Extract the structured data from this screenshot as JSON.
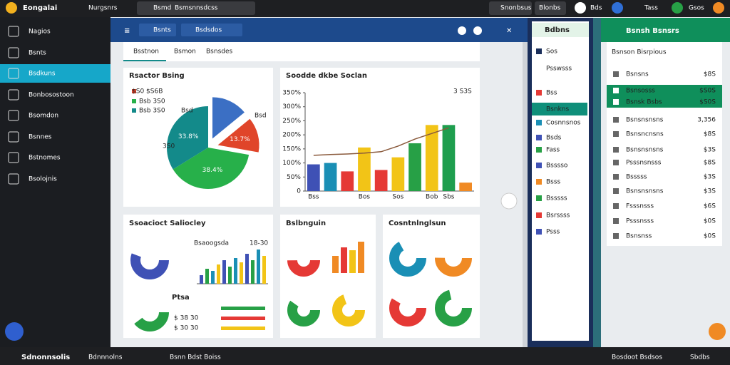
{
  "top_bar": {
    "app_name": "Eongalai",
    "menu": "Nurgsnrs",
    "search_label": "Bsmd",
    "search_text": "Bsmsnnsdcss",
    "account": "Snonbsus",
    "button": "Blonbs",
    "user": "Bds",
    "status": "Tass",
    "user2": "Gsos"
  },
  "sidebar": [
    "Nagios",
    "Bsnts",
    "Bsdkuns",
    "Bonbosostoon",
    "Bsomdon",
    "Bsnnes",
    "Bstnomes",
    "Bsolojnis"
  ],
  "header": {
    "select1": "Bsnts",
    "select2": "Bsdsdos"
  },
  "tabs": [
    "Bsstnon",
    "Bsmon",
    "Bsnsdes"
  ],
  "pie_card": {
    "type": "pie",
    "title": "Rsactor Bsing",
    "legend": [
      "$S0 $S6B",
      "Bsb 3S0",
      "Bsb 3S0"
    ],
    "side_labels": [
      "Bsd",
      "3S0",
      "Bsd"
    ],
    "values": [
      14.1,
      13.7,
      38.4,
      33.8
    ],
    "value_labels": [
      null,
      "13.7%",
      "38.4%",
      "33.8%"
    ],
    "colors": [
      "#3b6fc4",
      "#e0452a",
      "#27b04a",
      "#138a8a"
    ]
  },
  "bar_card": {
    "type": "bar",
    "title": "Soodde dkbe Soclan",
    "legend": "3 S3S",
    "categories": [
      "Bss",
      null,
      null,
      "Bos",
      null,
      "Sos",
      null,
      "Bob",
      "Sbs",
      null
    ],
    "values": [
      95,
      100,
      70,
      155,
      75,
      120,
      170,
      235,
      235,
      30
    ],
    "colors": [
      "#3f51b5",
      "#1a8fb5",
      "#e53935",
      "#f2c417",
      "#e53935",
      "#f2c417",
      "#27a046",
      "#f2c417",
      "#1e9e4e",
      "#f08a24"
    ],
    "ylim": [
      0,
      350
    ],
    "yticks": [
      0,
      {
        "value": 50,
        "label": "50%"
      },
      {
        "value": 100,
        "label": "100%"
      },
      {
        "value": 150,
        "label": "150%"
      },
      {
        "value": 200,
        "label": "200%"
      },
      {
        "value": 250,
        "label": "250%"
      },
      {
        "value": 300,
        "label": "300%"
      },
      {
        "value": 350,
        "label": "350%"
      }
    ],
    "trend": {
      "color": "#8a5a3c",
      "values": [
        127,
        130,
        132,
        135,
        140,
        160,
        185,
        205,
        225,
        null
      ]
    }
  },
  "card3": {
    "title": "Ssoacioct Saliocley",
    "chart_title": "Bsaoogsda",
    "chart_range": "18-30",
    "bars": [
      20,
      35,
      30,
      45,
      55,
      40,
      60,
      50,
      70,
      55,
      80,
      65
    ],
    "legend_title": "Ptsa",
    "legend": [
      "$ 38 30",
      "$ 30 30"
    ]
  },
  "card4": {
    "title": "Bslbnguin",
    "bars": [
      30,
      45,
      40,
      55
    ]
  },
  "card5": {
    "title": "Cosntnlnglsun"
  },
  "right_list": {
    "header": "Bdbns",
    "items": [
      "Sos",
      "Psswsss",
      "Bss",
      "Bsnkns",
      "Cosnnsnos",
      "Bsds",
      "Fass",
      "Bsssso",
      "Bsss",
      "Bsssss",
      "Bsrssss",
      "Psss"
    ]
  },
  "detail_panel": {
    "header": "Bsnsh Bsnsrs",
    "subtitle": "Bsnson Bisrpious",
    "rows": [
      {
        "label": "Bsnsns",
        "value": "$8S"
      },
      {
        "label": "Bsnsosss",
        "value": "$S0S"
      },
      {
        "label": "Bsnsk Bsbs",
        "value": "$S0S"
      },
      {
        "label": "Bsnsnsnsns",
        "value": "3,356"
      },
      {
        "label": "Bsnsncnsns",
        "value": "$8S"
      },
      {
        "label": "Bsnsnsnsns",
        "value": "$3S"
      },
      {
        "label": "Psssnsnsss",
        "value": "$8S"
      },
      {
        "label": "Bsssss",
        "value": "$3S"
      },
      {
        "label": "Bsnsnsnsns",
        "value": "$3S"
      },
      {
        "label": "Fsssnsss",
        "value": "$6S"
      },
      {
        "label": "Psssnsss",
        "value": "$0S"
      },
      {
        "label": "Bsnsnss",
        "value": "$0S"
      }
    ]
  },
  "bottom_bar": {
    "home": "Sdnonnsolis",
    "item1": "Bdnnnolns",
    "item2": "Bsnn Bdst Boiss",
    "item3": "Bosdoot Bsdsos",
    "user": "Sbdbs"
  }
}
